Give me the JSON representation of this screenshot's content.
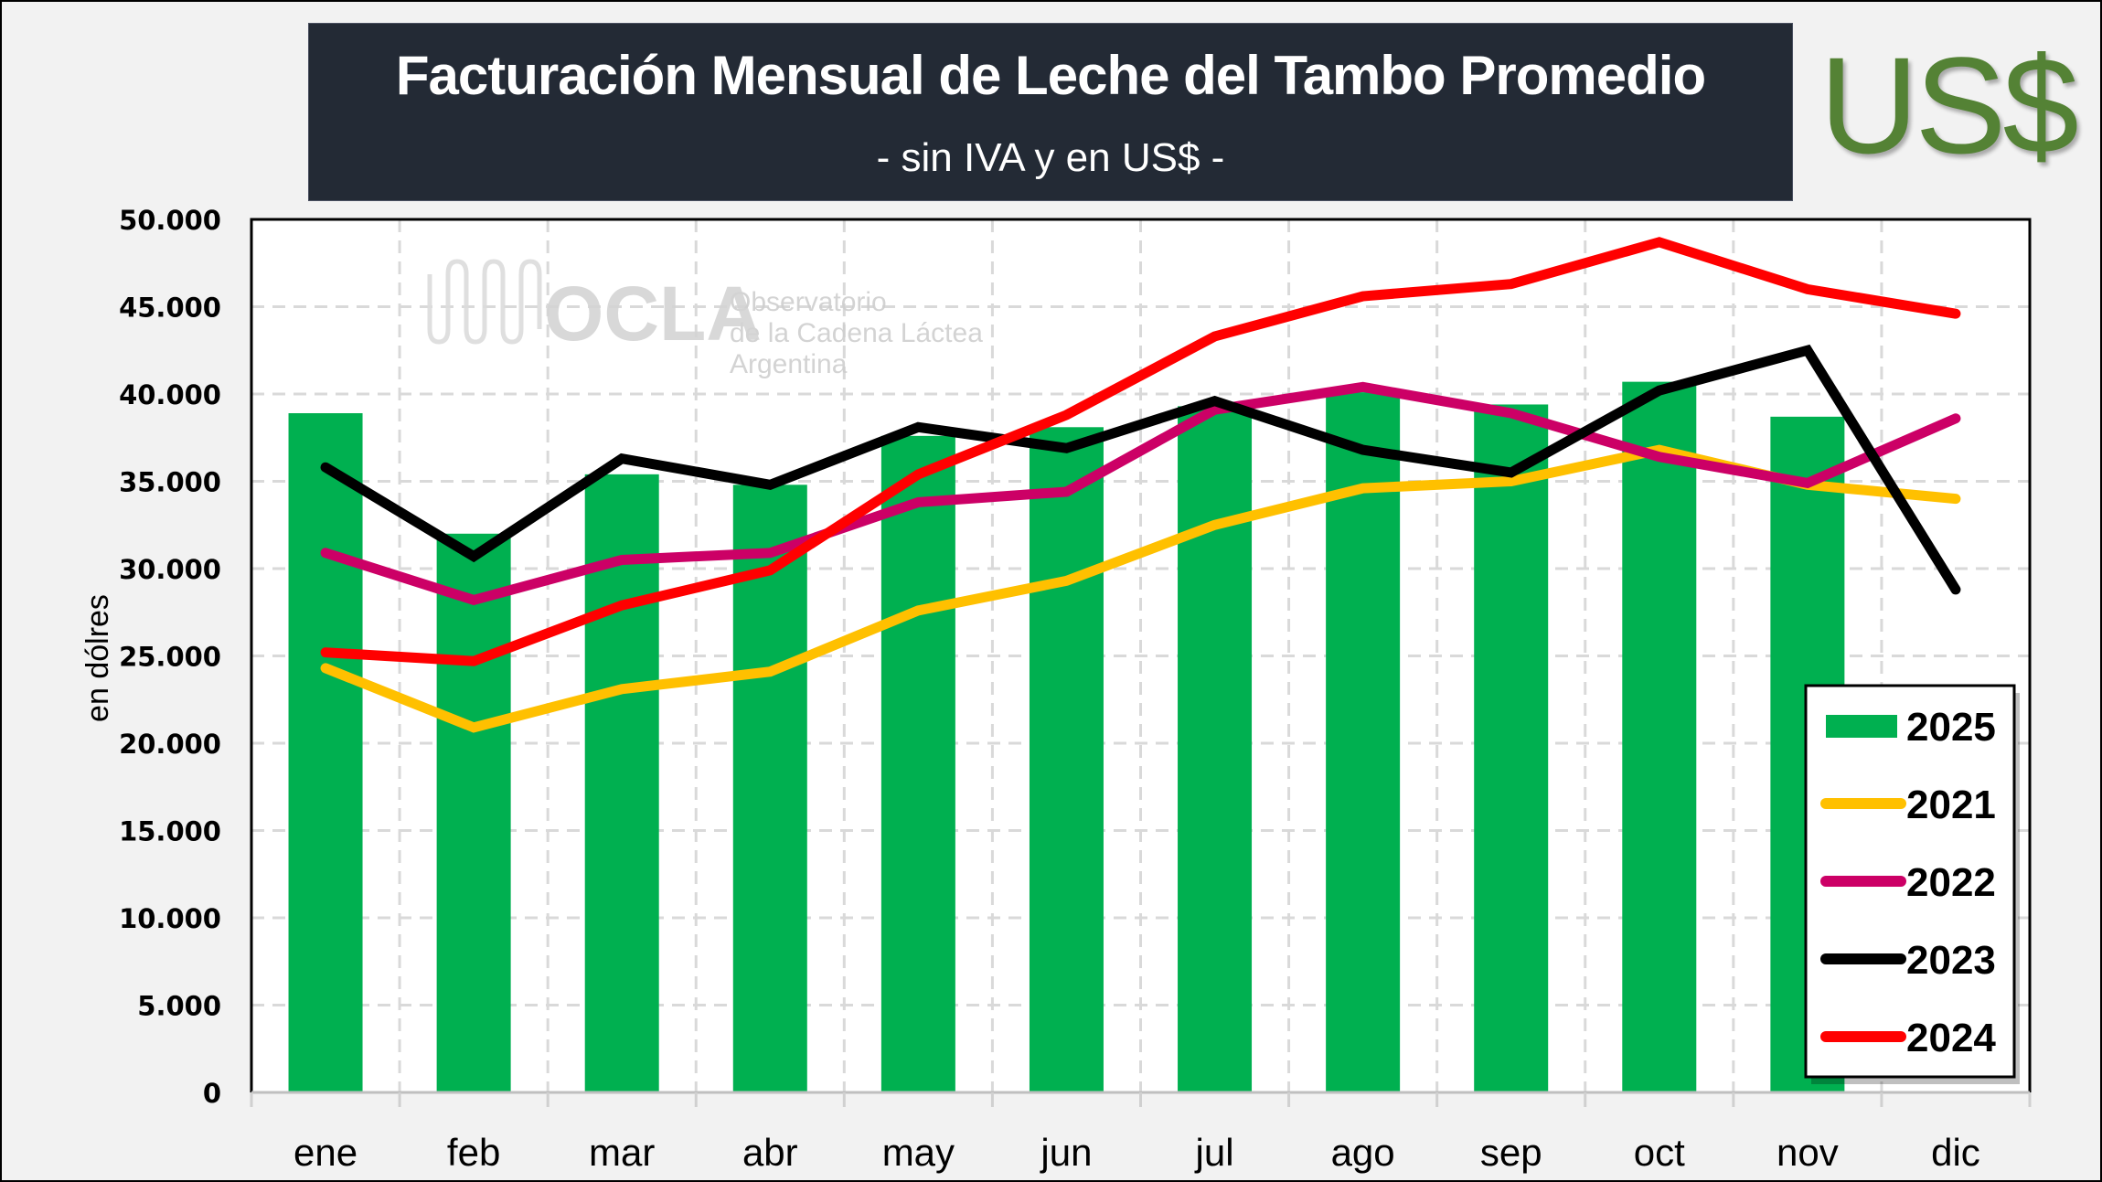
{
  "header": {
    "title": "Facturación Mensual de Leche del Tambo Promedio",
    "subtitle": "- sin IVA y en US$ -",
    "currency_logo": "US$"
  },
  "watermark": {
    "brand": "OCLA",
    "line1": "Observatorio",
    "line2": "de la Cadena Láctea",
    "line3": "Argentina"
  },
  "colors": {
    "bar_2025": "#00b050",
    "line_2021": "#ffc000",
    "line_2022": "#cc0066",
    "line_2023": "#000000",
    "line_2024": "#ff0000",
    "title_bg": "#232a35",
    "currency_logo": "#548235"
  },
  "chart_data": {
    "type": "bar+line",
    "title": "Facturación Mensual de Leche del Tambo Promedio",
    "subtitle": "- sin IVA y en US$ -",
    "xlabel": "",
    "ylabel": "en dólres",
    "ylim": [
      0,
      50000
    ],
    "yticks": [
      0,
      5000,
      10000,
      15000,
      20000,
      25000,
      30000,
      35000,
      40000,
      45000,
      50000
    ],
    "ytick_labels": [
      "0",
      "5.000",
      "10.000",
      "15.000",
      "20.000",
      "25.000",
      "30.000",
      "35.000",
      "40.000",
      "45.000",
      "50.000"
    ],
    "grid": true,
    "legend_position": "bottom-right",
    "categories": [
      "ene",
      "feb",
      "mar",
      "abr",
      "may",
      "jun",
      "jul",
      "ago",
      "sep",
      "oct",
      "nov",
      "dic"
    ],
    "series": [
      {
        "name": "2025",
        "kind": "bar",
        "color": "#00b050",
        "values": [
          38900,
          32000,
          35400,
          34800,
          37600,
          38100,
          39300,
          40100,
          39400,
          40700,
          38700,
          null
        ]
      },
      {
        "name": "2021",
        "kind": "line",
        "color": "#ffc000",
        "values": [
          24300,
          20900,
          23100,
          24100,
          27600,
          29300,
          32500,
          34600,
          35000,
          36800,
          34800,
          34000
        ]
      },
      {
        "name": "2022",
        "kind": "line",
        "color": "#cc0066",
        "values": [
          30900,
          28200,
          30500,
          30900,
          33800,
          34400,
          39100,
          40400,
          38900,
          36400,
          34900,
          38600
        ]
      },
      {
        "name": "2023",
        "kind": "line",
        "color": "#000000",
        "values": [
          35800,
          30700,
          36300,
          34800,
          38100,
          36900,
          39600,
          36800,
          35500,
          40200,
          42500,
          28800
        ]
      },
      {
        "name": "2024",
        "kind": "line",
        "color": "#ff0000",
        "values": [
          25200,
          24700,
          27900,
          29900,
          35400,
          38800,
          43300,
          45600,
          46300,
          48700,
          46000,
          44600
        ]
      }
    ]
  }
}
